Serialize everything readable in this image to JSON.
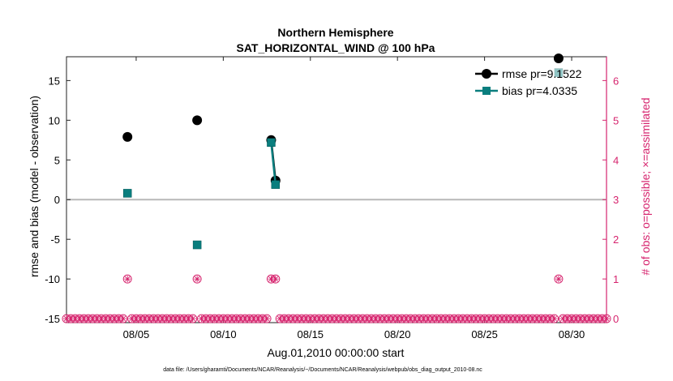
{
  "chart_data": {
    "type": "scatter",
    "title": [
      "Northern Hemisphere",
      "SAT_HORIZONTAL_WIND @ 100 hPa"
    ],
    "xlabel": "Aug.01,2010 00:00:00 start",
    "ylabel_left": "rmse and bias (model - observation)",
    "ylabel_right": "# of obs: o=possible; ×=assimilated",
    "footnote": "data file: /Users/gharamti/Documents/NCAR/Reanalysis/~/Documents/NCAR/Reanalysis/webpub/obs_diag_output_2010-08.nc",
    "xlim": [
      1,
      32
    ],
    "x_ticks": [
      5,
      10,
      15,
      20,
      25,
      30
    ],
    "x_tick_labels": [
      "08/05",
      "08/10",
      "08/15",
      "08/20",
      "08/25",
      "08/30"
    ],
    "ylim_left": [
      -15.5,
      18
    ],
    "y_ticks_left": [
      -15,
      -10,
      -5,
      0,
      5,
      10,
      15
    ],
    "ylim_right": [
      -0.1,
      6.6
    ],
    "y_ticks_right": [
      0,
      1,
      2,
      3,
      4,
      5,
      6
    ],
    "zero_line": 0,
    "grid": false,
    "legend_position": "top-right",
    "series": [
      {
        "name": "rmse pr=9.1522",
        "axis": "left",
        "color": "#000000",
        "marker": "circle",
        "points": [
          [
            4.5,
            7.9
          ],
          [
            8.5,
            10.0
          ],
          [
            12.75,
            7.5
          ],
          [
            13.0,
            2.4
          ],
          [
            29.25,
            17.8
          ]
        ],
        "segments": [
          [
            2,
            3
          ]
        ]
      },
      {
        "name": "bias pr=4.0335",
        "axis": "left",
        "color": "#0a7e7e",
        "marker": "square",
        "points": [
          [
            4.5,
            0.8
          ],
          [
            8.5,
            -5.7
          ],
          [
            12.75,
            7.2
          ],
          [
            13.0,
            1.9
          ],
          [
            29.25,
            16.0
          ]
        ],
        "segments": [
          [
            2,
            3
          ]
        ]
      },
      {
        "name": "obs possible / assimilated",
        "axis": "right",
        "color": "#d6246e",
        "marker": "circle-asterisk",
        "x_start": 1.0,
        "x_step": 0.25,
        "x_end": 32.0,
        "default_count": 0,
        "nonzero": [
          [
            4.5,
            1
          ],
          [
            8.5,
            1
          ],
          [
            12.75,
            1
          ],
          [
            13.0,
            1
          ],
          [
            29.25,
            1
          ]
        ]
      }
    ]
  }
}
